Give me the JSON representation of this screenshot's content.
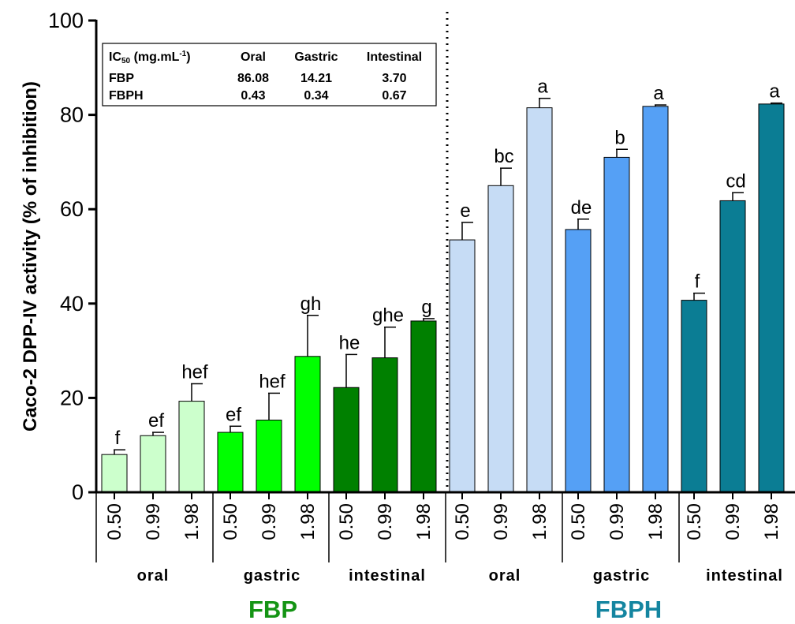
{
  "chart_data": {
    "type": "bar",
    "ylabel": "Caco-2 DPP-IV activity (% of inhibition)",
    "ylim": [
      0,
      100
    ],
    "yticks": [
      0,
      20,
      40,
      60,
      80,
      100
    ],
    "grid": false,
    "bars": [
      {
        "tick": "0.50",
        "group": "oral",
        "sample": "FBP",
        "value": 8.0,
        "err": 1.0,
        "sig": "f",
        "color": "#ccffcc"
      },
      {
        "tick": "0.99",
        "group": "oral",
        "sample": "FBP",
        "value": 12.0,
        "err": 0.7,
        "sig": "ef",
        "color": "#ccffcc"
      },
      {
        "tick": "1.98",
        "group": "oral",
        "sample": "FBP",
        "value": 19.3,
        "err": 3.7,
        "sig": "hef",
        "color": "#ccffcc"
      },
      {
        "tick": "0.50",
        "group": "gastric",
        "sample": "FBP",
        "value": 12.7,
        "err": 1.3,
        "sig": "ef",
        "color": "#00ff00"
      },
      {
        "tick": "0.99",
        "group": "gastric",
        "sample": "FBP",
        "value": 15.3,
        "err": 5.7,
        "sig": "hef",
        "color": "#00ff00"
      },
      {
        "tick": "1.98",
        "group": "gastric",
        "sample": "FBP",
        "value": 28.8,
        "err": 8.7,
        "sig": "gh",
        "color": "#00ff00"
      },
      {
        "tick": "0.50",
        "group": "intestinal",
        "sample": "FBP",
        "value": 22.2,
        "err": 7.0,
        "sig": "he",
        "color": "#008000"
      },
      {
        "tick": "0.99",
        "group": "intestinal",
        "sample": "FBP",
        "value": 28.5,
        "err": 6.5,
        "sig": "ghe",
        "color": "#008000"
      },
      {
        "tick": "1.98",
        "group": "intestinal",
        "sample": "FBP",
        "value": 36.3,
        "err": 0.5,
        "sig": "g",
        "color": "#008000"
      },
      {
        "tick": "0.50",
        "group": "oral",
        "sample": "FBPH",
        "value": 53.5,
        "err": 3.7,
        "sig": "e",
        "color": "#c6dcf5"
      },
      {
        "tick": "0.99",
        "group": "oral",
        "sample": "FBPH",
        "value": 65.0,
        "err": 3.7,
        "sig": "bc",
        "color": "#c6dcf5"
      },
      {
        "tick": "1.98",
        "group": "oral",
        "sample": "FBPH",
        "value": 81.5,
        "err": 2.0,
        "sig": "a",
        "color": "#c6dcf5"
      },
      {
        "tick": "0.50",
        "group": "gastric",
        "sample": "FBPH",
        "value": 55.7,
        "err": 2.2,
        "sig": "de",
        "color": "#55a0f5"
      },
      {
        "tick": "0.99",
        "group": "gastric",
        "sample": "FBPH",
        "value": 71.0,
        "err": 1.7,
        "sig": "b",
        "color": "#55a0f5"
      },
      {
        "tick": "1.98",
        "group": "gastric",
        "sample": "FBPH",
        "value": 81.8,
        "err": 0.3,
        "sig": "a",
        "color": "#55a0f5"
      },
      {
        "tick": "0.50",
        "group": "intestinal",
        "sample": "FBPH",
        "value": 40.7,
        "err": 1.5,
        "sig": "f",
        "color": "#0b7d94"
      },
      {
        "tick": "0.99",
        "group": "intestinal",
        "sample": "FBPH",
        "value": 61.8,
        "err": 1.7,
        "sig": "cd",
        "color": "#0b7d94"
      },
      {
        "tick": "1.98",
        "group": "intestinal",
        "sample": "FBPH",
        "value": 82.3,
        "err": 0.2,
        "sig": "a",
        "color": "#0b7d94"
      }
    ],
    "groups": [
      "oral",
      "gastric",
      "intestinal",
      "oral",
      "gastric",
      "intestinal"
    ],
    "samples": [
      {
        "name": "FBP",
        "color": "#149414"
      },
      {
        "name": "FBPH",
        "color": "#1485a0"
      }
    ],
    "ic50_table": {
      "header": {
        "main": "IC",
        "sub": "50",
        "unit": " (mg.mL",
        "sup": "-1",
        "close": ")"
      },
      "columns": [
        "Oral",
        "Gastric",
        "Intestinal"
      ],
      "rows": [
        {
          "name": "FBP",
          "color": "#5a8a3c",
          "values": [
            "86.08",
            "14.21",
            "3.70"
          ]
        },
        {
          "name": "FBPH",
          "color": "#3c6496",
          "values": [
            "0.43",
            "0.34",
            "0.67"
          ]
        }
      ]
    }
  }
}
